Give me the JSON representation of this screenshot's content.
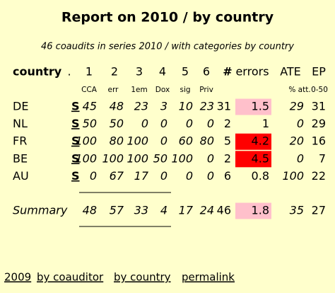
{
  "title": "Report on 2010 / by country",
  "subtitle": "46 coaudits in series 2010 / with categories by country",
  "table": {
    "header": [
      "country",
      ".",
      "1",
      "2",
      "3",
      "4",
      "5",
      "6",
      "#",
      "errors",
      "ATE",
      "EP"
    ],
    "subheader": [
      "CCA",
      "err",
      "1em",
      "Dox",
      "sig",
      "Priv",
      "% att.",
      "0-50"
    ],
    "rows": [
      {
        "country": "DE",
        "link": "S",
        "values": [
          45,
          48,
          23,
          3,
          10,
          23
        ],
        "count": 31,
        "errors": 1.5,
        "ate": 29,
        "ep": 31
      },
      {
        "country": "NL",
        "link": "S",
        "values": [
          50,
          50,
          0,
          0,
          0,
          0
        ],
        "count": 2,
        "errors": 1,
        "ate": 0,
        "ep": 29
      },
      {
        "country": "FR",
        "link": "S",
        "values": [
          100,
          80,
          100,
          0,
          60,
          80
        ],
        "count": 5,
        "errors": 4.2,
        "ate": 20,
        "ep": 16
      },
      {
        "country": "BE",
        "link": "S",
        "values": [
          100,
          100,
          100,
          50,
          100,
          0
        ],
        "count": 2,
        "errors": 4.5,
        "ate": 0,
        "ep": 7
      },
      {
        "country": "AU",
        "link": "S",
        "values": [
          0,
          67,
          17,
          0,
          0,
          0
        ],
        "count": 6,
        "errors": 0.8,
        "ate": 100,
        "ep": 22
      }
    ],
    "summary": {
      "label": "Summary",
      "values": [
        48,
        57,
        33,
        4,
        17,
        24
      ],
      "count": 46,
      "errors": 1.8,
      "ate": 35,
      "ep": 27
    }
  },
  "footer": {
    "links": [
      "2009",
      "by coauditor",
      "by country",
      "permalink"
    ]
  }
}
